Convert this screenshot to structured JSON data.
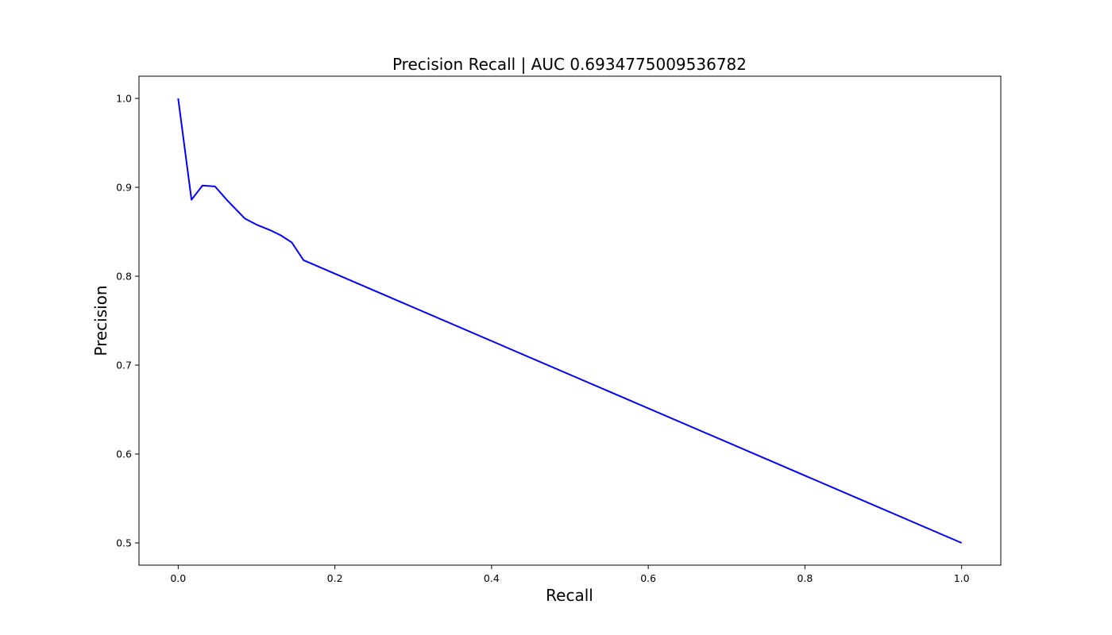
{
  "chart_data": {
    "type": "line",
    "title": "Precision Recall | AUC 0.6934775009536782",
    "xlabel": "Recall",
    "ylabel": "Precision",
    "xlim": [
      -0.05,
      1.05
    ],
    "ylim": [
      0.475,
      1.025
    ],
    "xticks": [
      0.0,
      0.2,
      0.4,
      0.6,
      0.8,
      1.0
    ],
    "xtick_labels": [
      "0.0",
      "0.2",
      "0.4",
      "0.6",
      "0.8",
      "1.0"
    ],
    "yticks": [
      0.5,
      0.6,
      0.7,
      0.8,
      0.9,
      1.0
    ],
    "ytick_labels": [
      "0.5",
      "0.6",
      "0.7",
      "0.8",
      "0.9",
      "1.0"
    ],
    "grid": false,
    "series": [
      {
        "color": "#0000ff",
        "x": [
          0.0,
          0.017,
          0.031,
          0.047,
          0.063,
          0.085,
          0.1,
          0.117,
          0.131,
          0.145,
          0.16,
          1.0
        ],
        "y": [
          1.0,
          0.886,
          0.902,
          0.901,
          0.885,
          0.865,
          0.858,
          0.852,
          0.846,
          0.838,
          0.818,
          0.5
        ]
      }
    ]
  }
}
